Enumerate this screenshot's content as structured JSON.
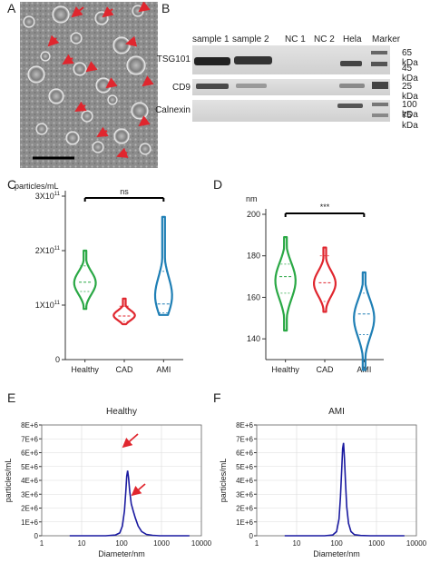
{
  "panels": {
    "a": "A",
    "b": "B",
    "c": "C",
    "d": "D",
    "e": "E",
    "f": "F"
  },
  "blot": {
    "lanes": [
      "sample 1",
      "sample 2",
      "NC 1",
      "NC 2",
      "Hela",
      "Marker"
    ],
    "rows": [
      {
        "name": "TSG101",
        "markers": [
          "65 kDa",
          "45 kDa"
        ]
      },
      {
        "name": "CD9",
        "markers": [
          "25 kDa"
        ]
      },
      {
        "name": "Calnexin",
        "markers": [
          "100 kDa",
          "75 kDa"
        ]
      }
    ]
  },
  "colors": {
    "healthy": "#2aa845",
    "cad": "#e0262e",
    "ami": "#1f7fb5",
    "nta": "#1a1aa0"
  },
  "chart_data": [
    {
      "type": "violin",
      "ylabel": "particles/mL",
      "categories": [
        "Healthy",
        "CAD",
        "AMI"
      ],
      "y_ticks": [
        "0",
        "1X10",
        "2X10",
        "3X10"
      ],
      "y_tick_exponent": "11",
      "ylim": [
        0,
        300000000000
      ],
      "significance": "ns",
      "series": [
        {
          "category": "Healthy",
          "min": 93000000000,
          "max": 200000000000,
          "median": 142000000000,
          "q1": 125000000000,
          "q3": 172000000000
        },
        {
          "category": "CAD",
          "min": 65000000000,
          "max": 112000000000,
          "median": 80000000000,
          "q1": 70000000000,
          "q3": 98000000000
        },
        {
          "category": "AMI",
          "min": 82000000000,
          "max": 262000000000,
          "median": 102000000000,
          "q1": 86000000000,
          "q3": 162000000000
        }
      ]
    },
    {
      "type": "violin",
      "ylabel": "nm",
      "categories": [
        "Healthy",
        "CAD",
        "AMI"
      ],
      "y_ticks": [
        "140",
        "160",
        "180",
        "200"
      ],
      "ylim": [
        130,
        200
      ],
      "significance": "***",
      "series": [
        {
          "category": "Healthy",
          "min": 144,
          "max": 189,
          "median": 170,
          "q1": 162,
          "q3": 176
        },
        {
          "category": "CAD",
          "min": 153,
          "max": 184,
          "median": 167,
          "q1": 158,
          "q3": 180
        },
        {
          "category": "AMI",
          "min": 125,
          "max": 172,
          "median": 152,
          "q1": 142,
          "q3": 162
        }
      ]
    },
    {
      "type": "line",
      "title": "Healthy",
      "xlabel": "Diameter/nm",
      "ylabel": "particles/mL",
      "x_scale": "log",
      "x_ticks": [
        "1",
        "10",
        "100",
        "1000",
        "10000"
      ],
      "y_ticks": [
        "0",
        "1E+6",
        "2E+6",
        "3E+6",
        "4E+6",
        "5E+6",
        "6E+6",
        "7E+6",
        "8E+6"
      ],
      "ylim": [
        0,
        8000000
      ],
      "x": [
        5,
        40,
        70,
        90,
        105,
        118,
        128,
        135,
        142,
        150,
        160,
        175,
        195,
        220,
        260,
        320,
        420,
        600,
        900,
        1500,
        3000,
        5000
      ],
      "y": [
        0,
        0,
        50000,
        200000,
        700000,
        1800000,
        3200000,
        4300000,
        4700000,
        4200000,
        3200000,
        2300000,
        1800000,
        1300000,
        700000,
        300000,
        100000,
        30000,
        0,
        0,
        0,
        0
      ]
    },
    {
      "type": "line",
      "title": "AMI",
      "xlabel": "Diameter/nm",
      "ylabel": "particles/mL",
      "x_scale": "log",
      "x_ticks": [
        "1",
        "10",
        "100",
        "1000",
        "10000"
      ],
      "y_ticks": [
        "0",
        "1E+6",
        "2E+6",
        "3E+6",
        "4E+6",
        "5E+6",
        "6E+6",
        "7E+6",
        "8E+6"
      ],
      "ylim": [
        0,
        8000000
      ],
      "x": [
        5,
        50,
        80,
        100,
        115,
        125,
        135,
        142,
        150,
        158,
        168,
        180,
        200,
        230,
        280,
        400,
        700,
        1500,
        5000
      ],
      "y": [
        0,
        0,
        50000,
        300000,
        1200000,
        2800000,
        4800000,
        6300000,
        6700000,
        5600000,
        3800000,
        2100000,
        900000,
        300000,
        80000,
        20000,
        0,
        0,
        0
      ]
    }
  ]
}
